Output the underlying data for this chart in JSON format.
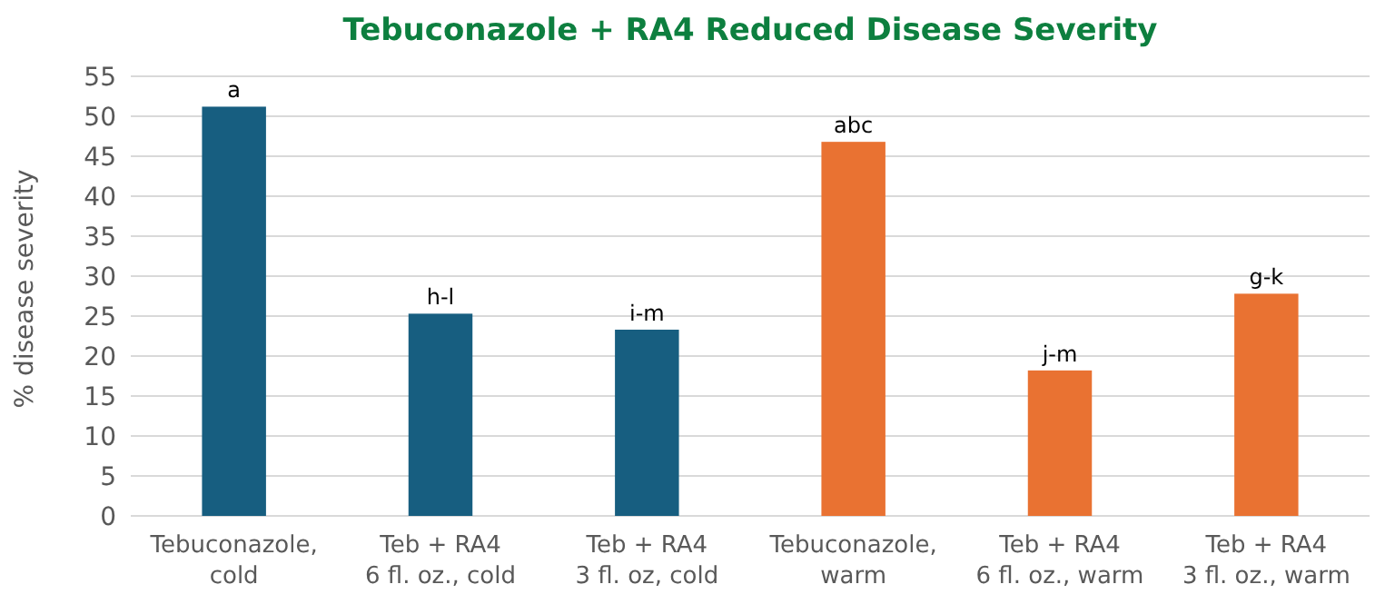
{
  "chart_data": {
    "type": "bar",
    "title": "Tebuconazole + RA4 Reduced Disease Severity",
    "ylabel": "% disease severity",
    "categories": [
      "Tebuconazole,\ncold",
      "Teb + RA4\n6 fl. oz., cold",
      "Teb + RA4\n3 fl. oz, cold",
      "Tebuconazole,\nwarm",
      "Teb + RA4\n6 fl. oz., warm",
      "Teb + RA4\n3 fl. oz., warm"
    ],
    "values": [
      51.2,
      25.3,
      23.3,
      46.8,
      18.2,
      27.8
    ],
    "colors": [
      "#175e80",
      "#175e80",
      "#175e80",
      "#e97232",
      "#e97232",
      "#e97232"
    ],
    "value_labels": [
      "a",
      "h-l",
      "i-m",
      "abc",
      "j-m",
      "g-k"
    ],
    "ylim": [
      0,
      55
    ],
    "yticks": [
      0,
      5,
      10,
      15,
      20,
      25,
      30,
      35,
      40,
      45,
      50,
      55
    ],
    "grid": "y"
  }
}
